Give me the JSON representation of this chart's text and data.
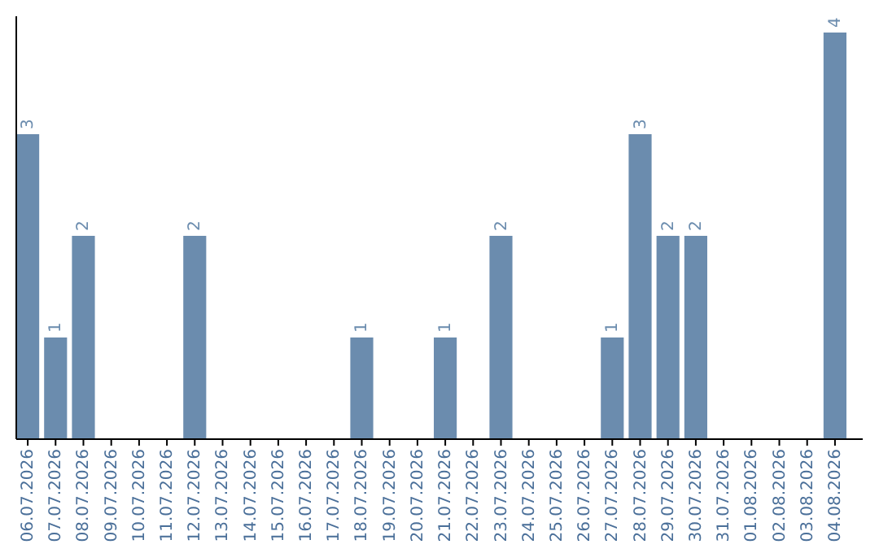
{
  "chart_data": {
    "type": "bar",
    "categories": [
      "06.07.2026",
      "07.07.2026",
      "08.07.2026",
      "09.07.2026",
      "10.07.2026",
      "11.07.2026",
      "12.07.2026",
      "13.07.2026",
      "14.07.2026",
      "15.07.2026",
      "16.07.2026",
      "17.07.2026",
      "18.07.2026",
      "19.07.2026",
      "20.07.2026",
      "21.07.2026",
      "22.07.2026",
      "23.07.2026",
      "24.07.2026",
      "25.07.2026",
      "26.07.2026",
      "27.07.2026",
      "28.07.2026",
      "29.07.2026",
      "30.07.2026",
      "31.07.2026",
      "01.08.2026",
      "02.08.2026",
      "03.08.2026",
      "04.08.2026"
    ],
    "values": [
      3,
      1,
      2,
      0,
      0,
      0,
      2,
      0,
      0,
      0,
      0,
      0,
      1,
      0,
      0,
      1,
      0,
      2,
      0,
      0,
      0,
      1,
      3,
      2,
      2,
      0,
      0,
      0,
      0,
      4
    ],
    "value_labels": [
      "3",
      "1",
      "2",
      null,
      null,
      null,
      "2",
      null,
      null,
      null,
      null,
      null,
      "1",
      null,
      null,
      "1",
      null,
      "2",
      null,
      null,
      null,
      "1",
      "3",
      "2",
      "2",
      null,
      null,
      null,
      null,
      "4"
    ],
    "color": "#6b8cae"
  }
}
